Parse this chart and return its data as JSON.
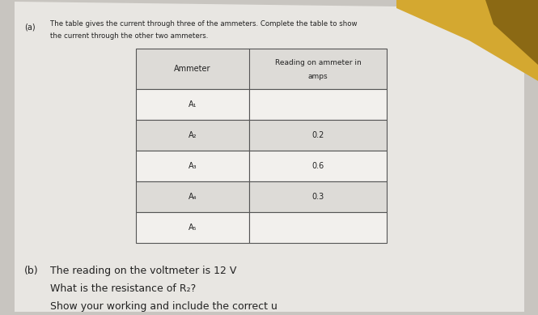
{
  "bg_color": "#c8c5c0",
  "paper_color": "#e8e6e2",
  "yellow_corner_color": "#d4a830",
  "brown_corner_color": "#8B6914",
  "table_bg_light": "#f2f0ed",
  "table_bg_dark": "#dddbd7",
  "table_border": "#555555",
  "text_color": "#222222",
  "part_a_label": "(a)",
  "part_a_line1": "The table gives the current through three of the ammeters. Complete the table to show",
  "part_a_line2": "the current through the other two ammeters.",
  "col1_header": "Ammeter",
  "col2_header_line1": "Reading on ammeter in",
  "col2_header_line2": "amps",
  "row_labels": [
    "A₁",
    "A₂",
    "A₃",
    "A₄",
    "A₅"
  ],
  "row_values": [
    "",
    "0.2",
    "0.6",
    "0.3",
    ""
  ],
  "part_b_label": "(b)",
  "part_b_line1": "The reading on the voltmeter is 12 V",
  "part_b_line2": "What is the resistance of R₂?",
  "part_b_line3": "Show your working and include the correct u"
}
